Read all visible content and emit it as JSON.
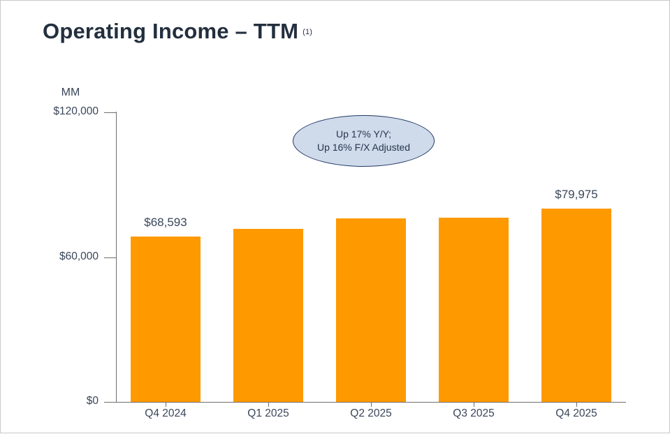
{
  "page": {
    "title": "Operating Income – TTM",
    "title_superscript": "(1)"
  },
  "colors": {
    "title_text": "#232f3e",
    "body_text": "#39465a",
    "axis_line": "#6e6e6e",
    "bar_fill": "#ff9900",
    "annotation_fill": "#cfdaeb",
    "annotation_border": "#1f3864",
    "annotation_text": "#24364f"
  },
  "chart_data": {
    "type": "bar",
    "title": "Operating Income – TTM",
    "unit_label": "MM",
    "xlabel": "",
    "ylabel": "MM (US$)",
    "ylim": [
      0,
      120000
    ],
    "grid": false,
    "legend": "none",
    "categories": [
      "Q4 2024",
      "Q1 2025",
      "Q2 2025",
      "Q3 2025",
      "Q4 2025"
    ],
    "values": [
      68593,
      71691,
      76190,
      76200,
      79975
    ],
    "value_labels": [
      "$68,593",
      "",
      "",
      "",
      "$79,975"
    ],
    "yticks": [
      {
        "value": 0,
        "label": "$0"
      },
      {
        "value": 60000,
        "label": "$60,000"
      },
      {
        "value": 120000,
        "label": "$120,000"
      }
    ],
    "annotation": {
      "line1": "Up 17% Y/Y;",
      "line2": "Up 16% F/X Adjusted"
    }
  }
}
